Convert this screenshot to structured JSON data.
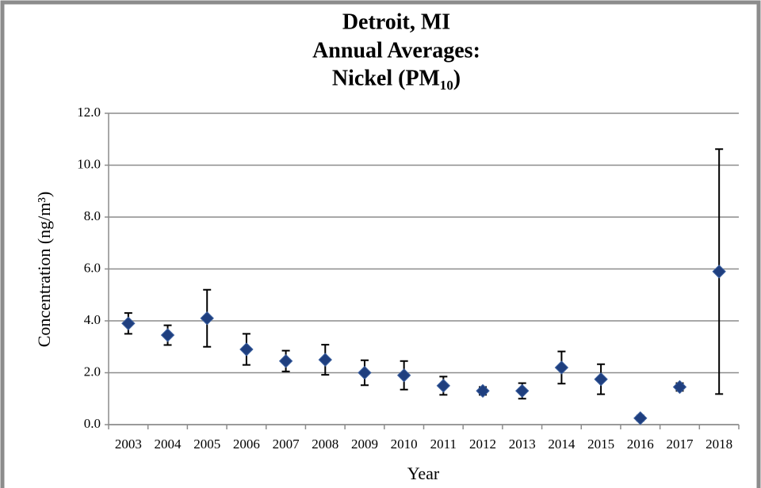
{
  "chart_data": {
    "type": "scatter",
    "title": [
      "Detroit, MI",
      "Annual Averages:",
      "Nickel (PM₁₀)"
    ],
    "x_label": "Year",
    "y_label": "Concentration (ng/m³)",
    "categories": [
      "2003",
      "2004",
      "2005",
      "2006",
      "2007",
      "2008",
      "2009",
      "2010",
      "2011",
      "2012",
      "2013",
      "2014",
      "2015",
      "2016",
      "2017",
      "2018"
    ],
    "series": [
      {
        "color": "#1f3f7f",
        "values": [
          3.9,
          3.45,
          4.1,
          2.9,
          2.45,
          2.5,
          2.0,
          1.9,
          1.5,
          1.3,
          1.3,
          2.2,
          1.75,
          0.25,
          1.45,
          5.9
        ],
        "errors": [
          0.4,
          0.38,
          1.1,
          0.6,
          0.4,
          0.58,
          0.48,
          0.55,
          0.35,
          0.15,
          0.3,
          0.62,
          0.58,
          0.1,
          0.15,
          4.72
        ]
      }
    ],
    "ylim": [
      0,
      12
    ],
    "yticks": [
      {
        "value": 0,
        "label": "0.0"
      },
      {
        "value": 2,
        "label": "2.0"
      },
      {
        "value": 4,
        "label": "4.0"
      },
      {
        "value": 6,
        "label": "6.0"
      },
      {
        "value": 8,
        "label": "8.0"
      },
      {
        "value": 10,
        "label": "10.0"
      },
      {
        "value": 12,
        "label": "12.0"
      }
    ],
    "grid": true
  }
}
